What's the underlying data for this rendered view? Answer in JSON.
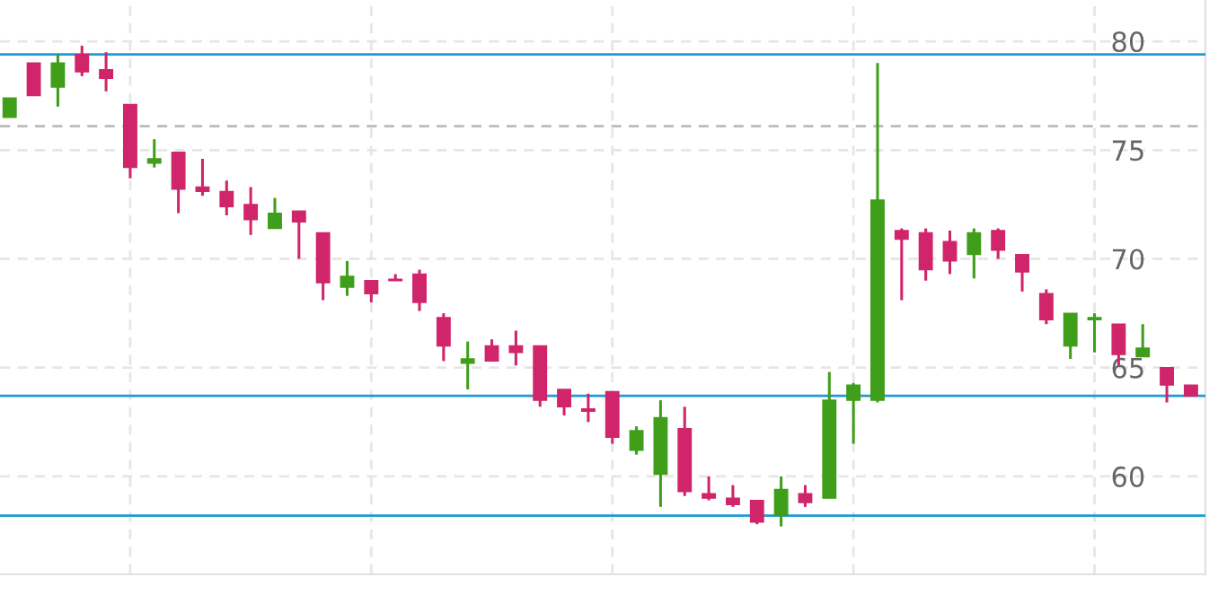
{
  "chart_data": {
    "type": "candlestick",
    "categories": [
      null,
      null,
      null,
      null,
      null,
      null,
      null,
      null,
      null,
      null,
      null,
      null,
      null,
      null,
      null,
      null,
      null,
      null,
      null,
      null,
      null,
      null,
      null,
      null,
      null,
      null,
      null,
      null,
      null,
      null,
      null,
      null,
      null,
      null,
      null,
      null,
      null,
      null,
      null,
      null,
      null,
      null,
      null,
      null,
      null,
      null,
      null,
      null,
      null,
      null
    ],
    "ohlc": [
      [
        76.5,
        77.4,
        76.5,
        77.4
      ],
      [
        79.0,
        79.0,
        77.5,
        77.5
      ],
      [
        77.9,
        79.4,
        77.0,
        79.0
      ],
      [
        79.4,
        79.8,
        78.4,
        78.6
      ],
      [
        78.7,
        79.5,
        77.7,
        78.3
      ],
      [
        77.1,
        77.1,
        73.7,
        74.2
      ],
      [
        74.4,
        75.5,
        74.2,
        74.6
      ],
      [
        74.9,
        74.9,
        72.1,
        73.2
      ],
      [
        73.3,
        74.6,
        72.9,
        73.1
      ],
      [
        73.1,
        73.6,
        72.0,
        72.4
      ],
      [
        72.5,
        73.3,
        71.1,
        71.8
      ],
      [
        71.4,
        72.8,
        71.4,
        72.1
      ],
      [
        72.2,
        72.2,
        70.0,
        71.7
      ],
      [
        71.2,
        71.2,
        68.1,
        68.9
      ],
      [
        68.7,
        69.9,
        68.3,
        69.2
      ],
      [
        69.0,
        69.0,
        68.0,
        68.4
      ],
      [
        69.0,
        69.3,
        69.0,
        69.0
      ],
      [
        69.3,
        69.5,
        67.6,
        68.0
      ],
      [
        67.3,
        67.5,
        65.3,
        66.0
      ],
      [
        65.2,
        66.2,
        64.0,
        65.4
      ],
      [
        66.0,
        66.3,
        65.3,
        65.3
      ],
      [
        66.0,
        66.7,
        65.1,
        65.7
      ],
      [
        66.0,
        66.0,
        63.2,
        63.5
      ],
      [
        64.0,
        64.0,
        62.8,
        63.2
      ],
      [
        63.1,
        63.8,
        62.5,
        63.0
      ],
      [
        63.9,
        63.9,
        61.5,
        61.8
      ],
      [
        61.2,
        62.3,
        61.0,
        62.1
      ],
      [
        60.1,
        63.5,
        58.6,
        62.7
      ],
      [
        62.2,
        63.2,
        59.1,
        59.3
      ],
      [
        59.2,
        60.0,
        58.9,
        59.0
      ],
      [
        59.0,
        59.6,
        58.6,
        58.7
      ],
      [
        58.9,
        58.9,
        57.8,
        57.9
      ],
      [
        58.2,
        60.0,
        57.7,
        59.4
      ],
      [
        59.2,
        59.6,
        58.6,
        58.8
      ],
      [
        59.0,
        64.8,
        59.0,
        63.5
      ],
      [
        63.5,
        64.3,
        61.5,
        64.2
      ],
      [
        63.5,
        79.0,
        63.4,
        72.7
      ],
      [
        71.3,
        71.4,
        68.1,
        70.9
      ],
      [
        71.2,
        71.4,
        69.0,
        69.5
      ],
      [
        70.8,
        71.3,
        69.3,
        69.9
      ],
      [
        70.2,
        71.4,
        69.1,
        71.2
      ],
      [
        71.3,
        71.4,
        70.0,
        70.4
      ],
      [
        70.2,
        70.2,
        68.5,
        69.4
      ],
      [
        68.4,
        68.6,
        67.0,
        67.2
      ],
      [
        66.0,
        67.5,
        65.4,
        67.5
      ],
      [
        67.2,
        67.5,
        65.7,
        67.3
      ],
      [
        67.0,
        67.0,
        65.1,
        65.6
      ],
      [
        65.5,
        67.0,
        65.5,
        65.9
      ],
      [
        65.0,
        65.0,
        63.4,
        64.2
      ],
      [
        64.2,
        64.2,
        63.7,
        63.7
      ]
    ],
    "colors": [
      "#3f9e1a",
      "#d0256b",
      "#3f9e1a",
      "#d0256b",
      "#d0256b",
      "#d0256b",
      "#3f9e1a",
      "#d0256b",
      "#d0256b",
      "#d0256b",
      "#d0256b",
      "#3f9e1a",
      "#d0256b",
      "#d0256b",
      "#3f9e1a",
      "#d0256b",
      "#d0256b",
      "#d0256b",
      "#d0256b",
      "#3f9e1a",
      "#d0256b",
      "#d0256b",
      "#d0256b",
      "#d0256b",
      "#d0256b",
      "#d0256b",
      "#3f9e1a",
      "#3f9e1a",
      "#d0256b",
      "#d0256b",
      "#d0256b",
      "#d0256b",
      "#3f9e1a",
      "#d0256b",
      "#3f9e1a",
      "#3f9e1a",
      "#3f9e1a",
      "#d0256b",
      "#d0256b",
      "#d0256b",
      "#3f9e1a",
      "#d0256b",
      "#d0256b",
      "#d0256b",
      "#3f9e1a",
      "#3f9e1a",
      "#d0256b",
      "#3f9e1a",
      "#d0256b",
      "#d0256b"
    ],
    "ylim": [
      55.5,
      81.9
    ],
    "yticks": [
      60,
      65,
      70,
      75,
      80
    ],
    "grid": true,
    "ref_lines": [
      {
        "axis": "y",
        "value": 79.4,
        "color": "#1a9bdb",
        "line_style": "solid"
      },
      {
        "axis": "y",
        "value": 76.1,
        "color": "#bbbbbb",
        "line_style": "dashed"
      },
      {
        "axis": "y",
        "value": 63.7,
        "color": "#1a9bdb",
        "line_style": "solid"
      },
      {
        "axis": "y",
        "value": 58.2,
        "color": "#1a9bdb",
        "line_style": "solid"
      }
    ]
  }
}
